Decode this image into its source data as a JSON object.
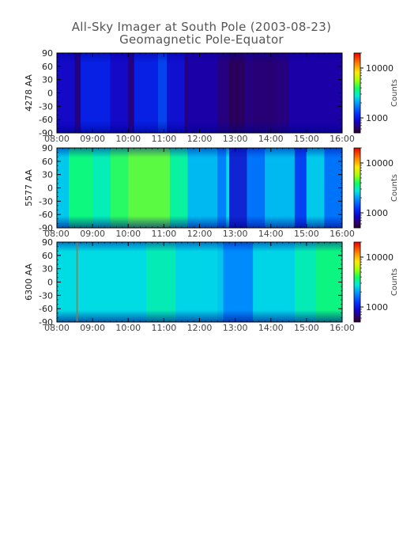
{
  "title": "All-Sky Imager at South Pole (2003-08-23)",
  "subtitle": "Geomagnetic Pole-Equator",
  "chart_data": [
    {
      "type": "heatmap",
      "ylabel": "4278 AA",
      "x_ticks": [
        "08:00",
        "09:00",
        "10:00",
        "11:00",
        "12:00",
        "13:00",
        "14:00",
        "15:00",
        "16:00"
      ],
      "y_ticks": [
        90,
        60,
        30,
        0,
        -30,
        -60,
        -90
      ],
      "ylim": [
        -90,
        90
      ],
      "colorbar": {
        "label": "Counts",
        "scale": "log",
        "range": [
          500,
          20000
        ],
        "ticks": [
          1000,
          10000
        ]
      },
      "base_level": 0.08,
      "columns": [
        {
          "from": "08:00",
          "to": "08:30",
          "level": 0.16
        },
        {
          "from": "08:40",
          "to": "09:30",
          "level": 0.22
        },
        {
          "from": "09:30",
          "to": "10:00",
          "level": 0.16
        },
        {
          "from": "10:10",
          "to": "10:50",
          "level": 0.22
        },
        {
          "from": "10:50",
          "to": "11:05",
          "level": 0.28
        },
        {
          "from": "11:05",
          "to": "11:35",
          "level": 0.18
        },
        {
          "from": "11:40",
          "to": "12:30",
          "level": 0.12
        },
        {
          "from": "12:50",
          "to": "13:15",
          "level": 0.04
        },
        {
          "from": "13:30",
          "to": "14:10",
          "level": 0.07
        },
        {
          "from": "14:30",
          "to": "16:00",
          "level": 0.12
        }
      ]
    },
    {
      "type": "heatmap",
      "ylabel": "5577 AA",
      "x_ticks": [
        "08:00",
        "09:00",
        "10:00",
        "11:00",
        "12:00",
        "13:00",
        "14:00",
        "15:00",
        "16:00"
      ],
      "y_ticks": [
        90,
        60,
        30,
        0,
        -30,
        -60,
        -90
      ],
      "ylim": [
        -90,
        90
      ],
      "colorbar": {
        "label": "Counts",
        "scale": "log",
        "range": [
          500,
          20000
        ],
        "ticks": [
          1000,
          10000
        ]
      },
      "base_level": 0.45,
      "columns": [
        {
          "from": "08:00",
          "to": "08:20",
          "level": 0.42
        },
        {
          "from": "08:20",
          "to": "09:00",
          "level": 0.55
        },
        {
          "from": "09:00",
          "to": "09:30",
          "level": 0.5
        },
        {
          "from": "09:30",
          "to": "10:00",
          "level": 0.58
        },
        {
          "from": "10:00",
          "to": "11:10",
          "level": 0.62
        },
        {
          "from": "11:10",
          "to": "11:40",
          "level": 0.52
        },
        {
          "from": "11:40",
          "to": "12:30",
          "level": 0.4
        },
        {
          "from": "12:30",
          "to": "12:45",
          "level": 0.32
        },
        {
          "from": "12:50",
          "to": "13:20",
          "level": 0.15
        },
        {
          "from": "13:20",
          "to": "13:50",
          "level": 0.3
        },
        {
          "from": "13:50",
          "to": "14:40",
          "level": 0.4
        },
        {
          "from": "14:40",
          "to": "15:00",
          "level": 0.22
        },
        {
          "from": "15:00",
          "to": "15:30",
          "level": 0.42
        },
        {
          "from": "15:30",
          "to": "16:00",
          "level": 0.3
        }
      ]
    },
    {
      "type": "heatmap",
      "ylabel": "6300 AA",
      "x_ticks": [
        "08:00",
        "09:00",
        "10:00",
        "11:00",
        "12:00",
        "13:00",
        "14:00",
        "15:00",
        "16:00"
      ],
      "y_ticks": [
        90,
        60,
        30,
        0,
        -30,
        -60,
        -90
      ],
      "ylim": [
        -90,
        90
      ],
      "colorbar": {
        "label": "Counts",
        "scale": "log",
        "range": [
          500,
          20000
        ],
        "ticks": [
          1000,
          10000
        ]
      },
      "base_level": 0.42,
      "columns": [
        {
          "from": "08:00",
          "to": "10:30",
          "level": 0.45
        },
        {
          "from": "10:30",
          "to": "11:20",
          "level": 0.5
        },
        {
          "from": "11:20",
          "to": "12:30",
          "level": 0.44
        },
        {
          "from": "12:40",
          "to": "13:30",
          "level": 0.34
        },
        {
          "from": "13:30",
          "to": "14:40",
          "level": 0.44
        },
        {
          "from": "14:40",
          "to": "15:15",
          "level": 0.5
        },
        {
          "from": "15:15",
          "to": "16:00",
          "level": 0.55
        }
      ],
      "vertical_line": {
        "time": "08:33",
        "level": 0.92
      }
    }
  ]
}
